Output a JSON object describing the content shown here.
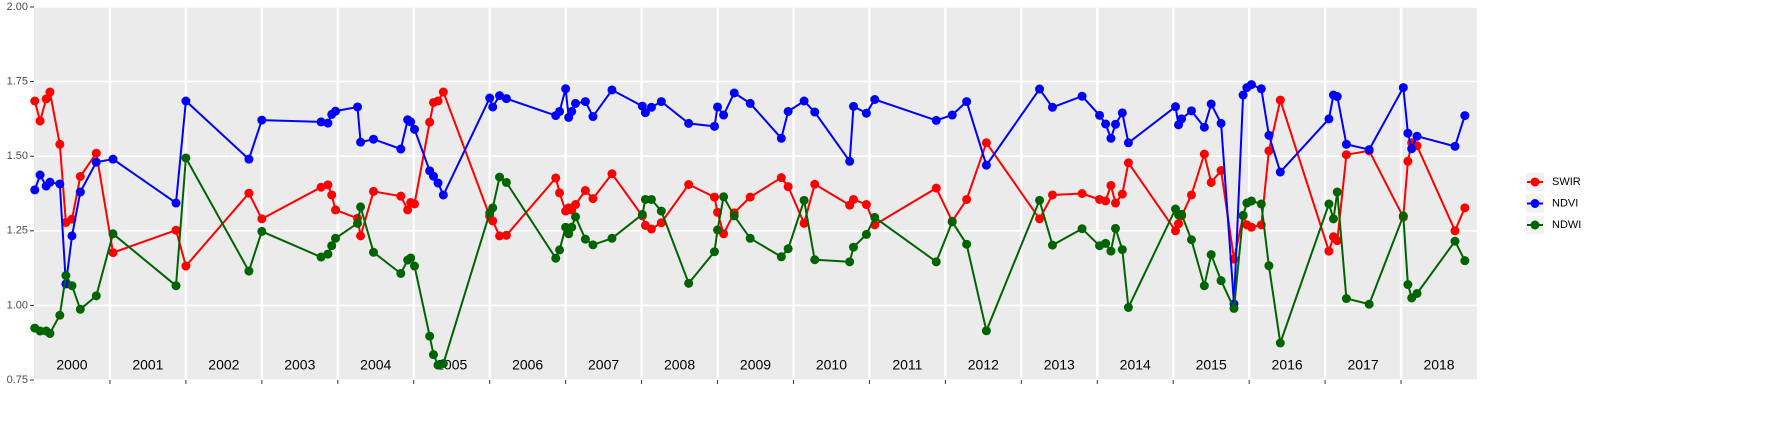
{
  "chart_data": {
    "type": "line",
    "x": [
      2000.01,
      2000.08,
      2000.16,
      2000.21,
      2000.34,
      2000.42,
      2000.5,
      2000.61,
      2000.82,
      2001.04,
      2001.87,
      2002.0,
      2002.83,
      2003.0,
      2003.78,
      2003.87,
      2003.92,
      2003.97,
      2004.26,
      2004.3,
      2004.47,
      2004.83,
      2004.92,
      2004.96,
      2005.01,
      2005.21,
      2005.26,
      2005.32,
      2005.39,
      2006.0,
      2006.04,
      2006.13,
      2006.22,
      2006.87,
      2006.92,
      2007.0,
      2007.04,
      2007.08,
      2007.13,
      2007.26,
      2007.36,
      2007.61,
      2008.01,
      2008.05,
      2008.13,
      2008.26,
      2008.62,
      2008.96,
      2009.0,
      2009.08,
      2009.22,
      2009.43,
      2009.84,
      2009.93,
      2010.14,
      2010.28,
      2010.74,
      2010.79,
      2010.96,
      2011.07,
      2011.88,
      2012.09,
      2012.28,
      2012.54,
      2013.24,
      2013.41,
      2013.8,
      2014.03,
      2014.11,
      2014.18,
      2014.24,
      2014.33,
      2014.41,
      2015.03,
      2015.07,
      2015.11,
      2015.24,
      2015.41,
      2015.5,
      2015.63,
      2015.8,
      2015.92,
      2015.97,
      2016.03,
      2016.16,
      2016.26,
      2016.41,
      2017.05,
      2017.11,
      2017.16,
      2017.28,
      2017.58,
      2018.03,
      2018.09,
      2018.14,
      2018.21,
      2018.71,
      2018.84
    ],
    "series": [
      {
        "name": "SWIR",
        "color": "#ff0000",
        "values": [
          1.685,
          1.618,
          1.692,
          1.715,
          1.54,
          1.278,
          1.289,
          1.432,
          1.51,
          1.177,
          1.252,
          1.132,
          1.376,
          1.29,
          1.396,
          1.404,
          1.37,
          1.32,
          1.292,
          1.233,
          1.382,
          1.366,
          1.32,
          1.345,
          1.34,
          1.614,
          1.68,
          1.685,
          1.715,
          1.299,
          1.283,
          1.233,
          1.235,
          1.427,
          1.377,
          1.316,
          1.327,
          1.32,
          1.338,
          1.385,
          1.358,
          1.441,
          1.3,
          1.268,
          1.256,
          1.277,
          1.405,
          1.363,
          1.312,
          1.24,
          1.31,
          1.363,
          1.428,
          1.398,
          1.275,
          1.406,
          1.336,
          1.355,
          1.338,
          1.27,
          1.393,
          1.282,
          1.355,
          1.545,
          1.29,
          1.37,
          1.375,
          1.355,
          1.35,
          1.402,
          1.343,
          1.373,
          1.478,
          1.25,
          1.274,
          1.3,
          1.37,
          1.507,
          1.412,
          1.452,
          1.155,
          1.3,
          1.27,
          1.262,
          1.27,
          1.518,
          1.688,
          1.182,
          1.23,
          1.217,
          1.505,
          1.518,
          1.296,
          1.483,
          1.545,
          1.535,
          1.25,
          1.327
        ]
      },
      {
        "name": "NDVI",
        "color": "#0000ff",
        "values": [
          1.387,
          1.437,
          1.4,
          1.413,
          1.407,
          1.072,
          1.233,
          1.38,
          1.48,
          1.49,
          1.343,
          1.685,
          1.49,
          1.621,
          1.615,
          1.611,
          1.64,
          1.651,
          1.665,
          1.547,
          1.557,
          1.524,
          1.622,
          1.615,
          1.59,
          1.451,
          1.433,
          1.41,
          1.37,
          1.695,
          1.665,
          1.703,
          1.693,
          1.636,
          1.65,
          1.726,
          1.63,
          1.65,
          1.677,
          1.683,
          1.633,
          1.722,
          1.668,
          1.646,
          1.664,
          1.683,
          1.61,
          1.6,
          1.665,
          1.638,
          1.712,
          1.677,
          1.56,
          1.65,
          1.685,
          1.648,
          1.483,
          1.667,
          1.644,
          1.69,
          1.62,
          1.638,
          1.683,
          1.47,
          1.725,
          1.664,
          1.701,
          1.637,
          1.608,
          1.56,
          1.607,
          1.645,
          1.545,
          1.666,
          1.605,
          1.625,
          1.652,
          1.597,
          1.675,
          1.61,
          1.005,
          1.705,
          1.73,
          1.74,
          1.726,
          1.57,
          1.447,
          1.625,
          1.705,
          1.7,
          1.54,
          1.522,
          1.73,
          1.577,
          1.525,
          1.567,
          1.533,
          1.636
        ]
      },
      {
        "name": "NDWI",
        "color": "#006400",
        "values": [
          0.924,
          0.914,
          0.914,
          0.906,
          0.967,
          1.1,
          1.066,
          0.987,
          1.032,
          1.24,
          1.066,
          1.494,
          1.115,
          1.248,
          1.162,
          1.172,
          1.2,
          1.225,
          1.275,
          1.33,
          1.178,
          1.107,
          1.152,
          1.159,
          1.132,
          0.897,
          0.835,
          0.8,
          0.805,
          1.31,
          1.327,
          1.43,
          1.412,
          1.158,
          1.186,
          1.262,
          1.24,
          1.262,
          1.297,
          1.222,
          1.203,
          1.225,
          1.305,
          1.355,
          1.355,
          1.316,
          1.074,
          1.18,
          1.253,
          1.364,
          1.3,
          1.225,
          1.163,
          1.19,
          1.352,
          1.153,
          1.146,
          1.195,
          1.238,
          1.295,
          1.146,
          1.28,
          1.205,
          0.915,
          1.352,
          1.202,
          1.257,
          1.2,
          1.208,
          1.182,
          1.258,
          1.187,
          0.993,
          1.323,
          1.303,
          1.305,
          1.22,
          1.066,
          1.17,
          1.083,
          0.99,
          1.302,
          1.343,
          1.35,
          1.34,
          1.133,
          0.874,
          1.34,
          1.29,
          1.38,
          1.023,
          1.004,
          1.3,
          1.07,
          1.025,
          1.04,
          1.215,
          1.15
        ]
      }
    ],
    "xlim": [
      2000,
      2019
    ],
    "xticks": [
      2001,
      2002,
      2003,
      2004,
      2005,
      2006,
      2007,
      2008,
      2009,
      2010,
      2011,
      2012,
      2013,
      2014,
      2015,
      2016,
      2017,
      2018
    ],
    "periods": [
      "2000",
      "2001",
      "2002",
      "2003",
      "2004",
      "2005",
      "2006",
      "2007",
      "2008",
      "2009",
      "2010",
      "2011",
      "2012",
      "2013",
      "2014",
      "2015",
      "2016",
      "2017",
      "2018"
    ],
    "ylim": [
      0.75,
      2.0
    ],
    "yticks": [
      {
        "value": 0.75,
        "label": "0.75"
      },
      {
        "value": 1,
        "label": "1.00"
      },
      {
        "value": 1.25,
        "label": "1.25"
      },
      {
        "value": 1.5,
        "label": "1.50"
      },
      {
        "value": 1.75,
        "label": "1.75"
      },
      {
        "value": 2,
        "label": "2.00"
      }
    ],
    "grid": true,
    "legend": "right"
  }
}
